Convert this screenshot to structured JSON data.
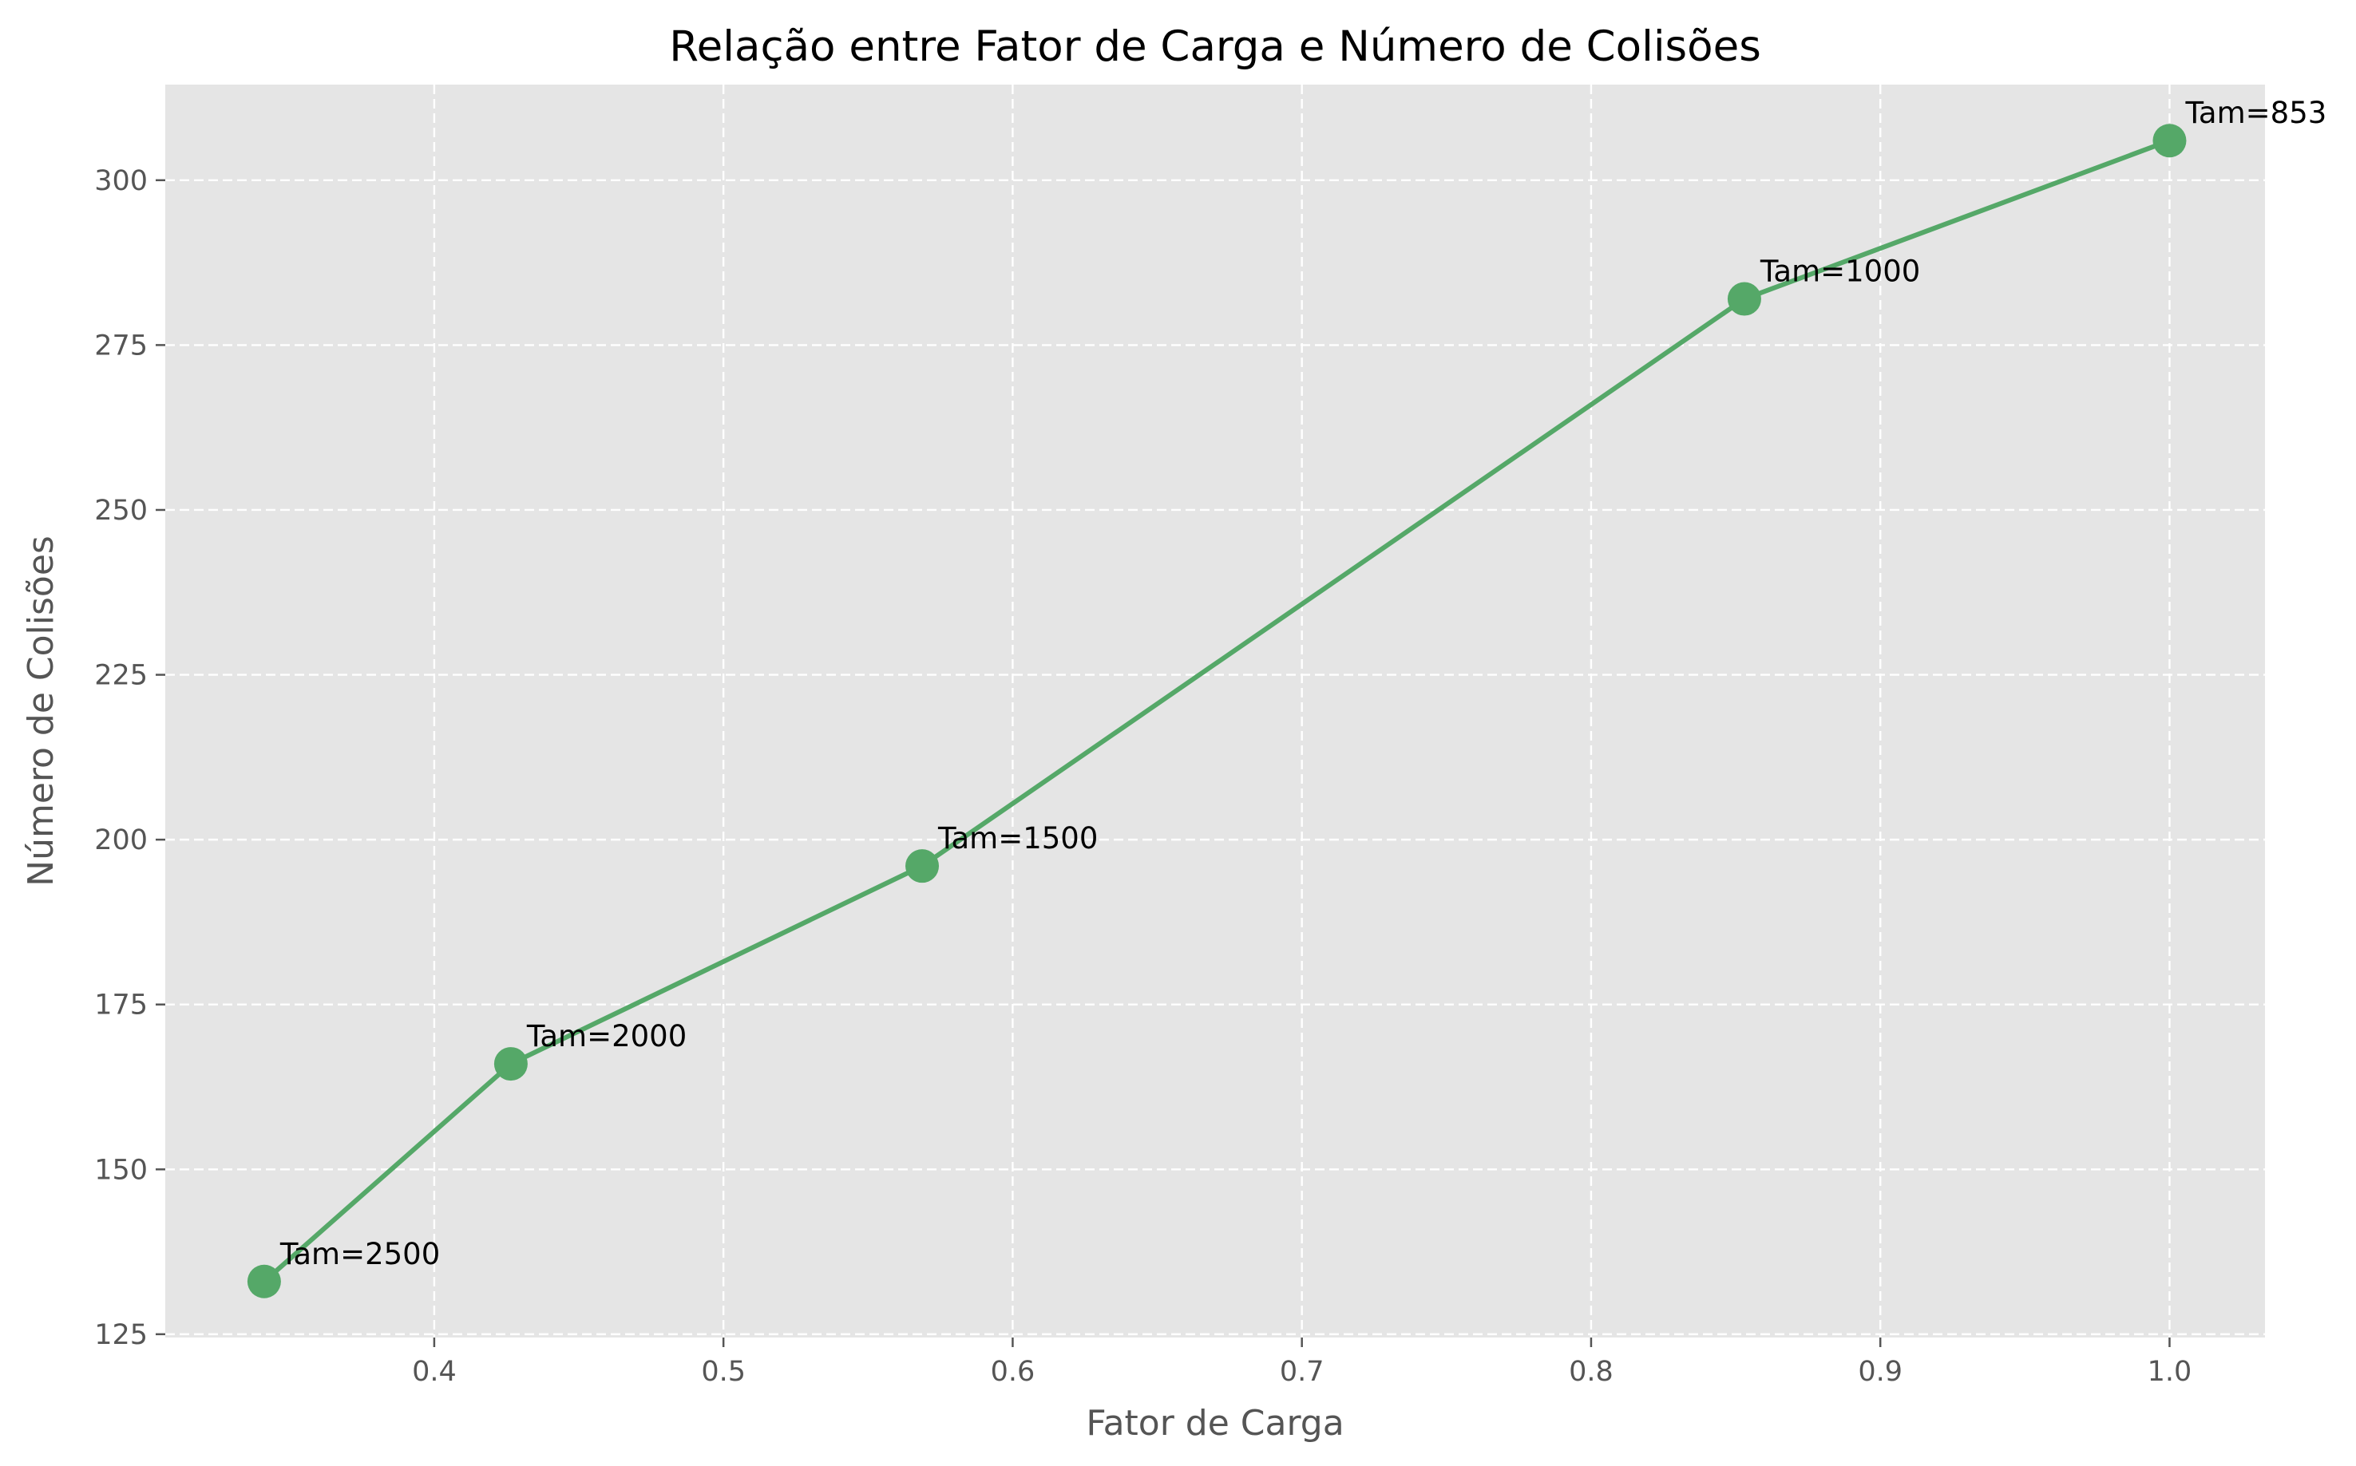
{
  "chart_data": {
    "type": "line",
    "title": "Relação entre Fator de Carga e Número de Colisões",
    "xlabel": "Fator de Carga",
    "ylabel": "Número de Colisões",
    "xlim": [
      0.307,
      1.033
    ],
    "ylim": [
      124.5,
      314.5
    ],
    "xticks": [
      0.4,
      0.5,
      0.6,
      0.7,
      0.8,
      0.9,
      1.0
    ],
    "xtick_labels": [
      "0.4",
      "0.5",
      "0.6",
      "0.7",
      "0.8",
      "0.9",
      "1.0"
    ],
    "yticks": [
      125,
      150,
      175,
      200,
      225,
      250,
      275,
      300
    ],
    "ytick_labels": [
      "125",
      "150",
      "175",
      "200",
      "225",
      "250",
      "275",
      "300"
    ],
    "grid": true,
    "series": [
      {
        "color": "#55a868",
        "x": [
          0.3412,
          0.4265,
          0.5687,
          0.853,
          1.0
        ],
        "y": [
          133,
          166,
          196,
          282,
          306
        ],
        "labels": [
          "Tam=2500",
          "Tam=2000",
          "Tam=1500",
          "Tam=1000",
          "Tam=853"
        ]
      }
    ]
  },
  "colors": {
    "plot_background": "#e5e5e5",
    "grid": "#ffffff",
    "series": "#55a868",
    "axis_text": "#555555",
    "title_text": "#000000"
  }
}
